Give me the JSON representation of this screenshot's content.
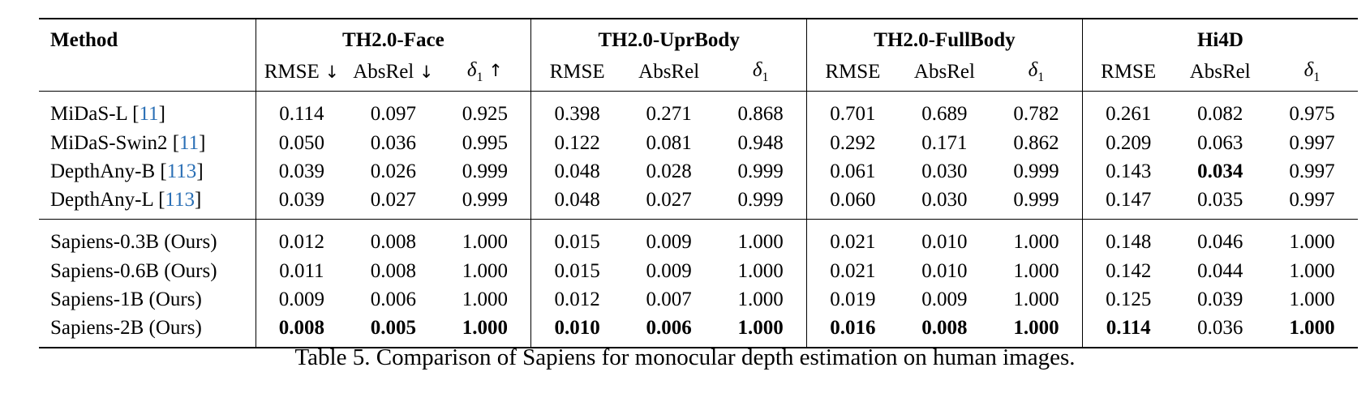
{
  "table": {
    "method_header": "Method",
    "groups": [
      {
        "name": "TH2.0-Face",
        "subcols": [
          "RMSE ↓",
          "AbsRel ↓",
          "δ1 ↑"
        ]
      },
      {
        "name": "TH2.0-UprBody",
        "subcols": [
          "RMSE",
          "AbsRel",
          "δ1"
        ]
      },
      {
        "name": "TH2.0-FullBody",
        "subcols": [
          "RMSE",
          "AbsRel",
          "δ1"
        ]
      },
      {
        "name": "Hi4D",
        "subcols": [
          "RMSE",
          "AbsRel",
          "δ1"
        ]
      }
    ],
    "blocks": [
      {
        "rows": [
          {
            "method": "MiDaS-L",
            "cite": "11",
            "values": [
              "0.114",
              "0.097",
              "0.925",
              "0.398",
              "0.271",
              "0.868",
              "0.701",
              "0.689",
              "0.782",
              "0.261",
              "0.082",
              "0.975"
            ],
            "bold": []
          },
          {
            "method": "MiDaS-Swin2",
            "cite": "11",
            "values": [
              "0.050",
              "0.036",
              "0.995",
              "0.122",
              "0.081",
              "0.948",
              "0.292",
              "0.171",
              "0.862",
              "0.209",
              "0.063",
              "0.997"
            ],
            "bold": []
          },
          {
            "method": "DepthAny-B",
            "cite": "113",
            "values": [
              "0.039",
              "0.026",
              "0.999",
              "0.048",
              "0.028",
              "0.999",
              "0.061",
              "0.030",
              "0.999",
              "0.143",
              "0.034",
              "0.997"
            ],
            "bold": [
              10
            ]
          },
          {
            "method": "DepthAny-L",
            "cite": "113",
            "values": [
              "0.039",
              "0.027",
              "0.999",
              "0.048",
              "0.027",
              "0.999",
              "0.060",
              "0.030",
              "0.999",
              "0.147",
              "0.035",
              "0.997"
            ],
            "bold": []
          }
        ]
      },
      {
        "rows": [
          {
            "method": "Sapiens-0.3B (Ours)",
            "cite": "",
            "values": [
              "0.012",
              "0.008",
              "1.000",
              "0.015",
              "0.009",
              "1.000",
              "0.021",
              "0.010",
              "1.000",
              "0.148",
              "0.046",
              "1.000"
            ],
            "bold": []
          },
          {
            "method": "Sapiens-0.6B (Ours)",
            "cite": "",
            "values": [
              "0.011",
              "0.008",
              "1.000",
              "0.015",
              "0.009",
              "1.000",
              "0.021",
              "0.010",
              "1.000",
              "0.142",
              "0.044",
              "1.000"
            ],
            "bold": []
          },
          {
            "method": "Sapiens-1B (Ours)",
            "cite": "",
            "values": [
              "0.009",
              "0.006",
              "1.000",
              "0.012",
              "0.007",
              "1.000",
              "0.019",
              "0.009",
              "1.000",
              "0.125",
              "0.039",
              "1.000"
            ],
            "bold": []
          },
          {
            "method": "Sapiens-2B (Ours)",
            "cite": "",
            "values": [
              "0.008",
              "0.005",
              "1.000",
              "0.010",
              "0.006",
              "1.000",
              "0.016",
              "0.008",
              "1.000",
              "0.114",
              "0.036",
              "1.000"
            ],
            "bold": [
              0,
              1,
              2,
              3,
              4,
              5,
              6,
              7,
              8,
              9,
              11
            ]
          }
        ]
      }
    ]
  },
  "caption": "Table 5. Comparison of Sapiens for monocular depth estimation on human images."
}
